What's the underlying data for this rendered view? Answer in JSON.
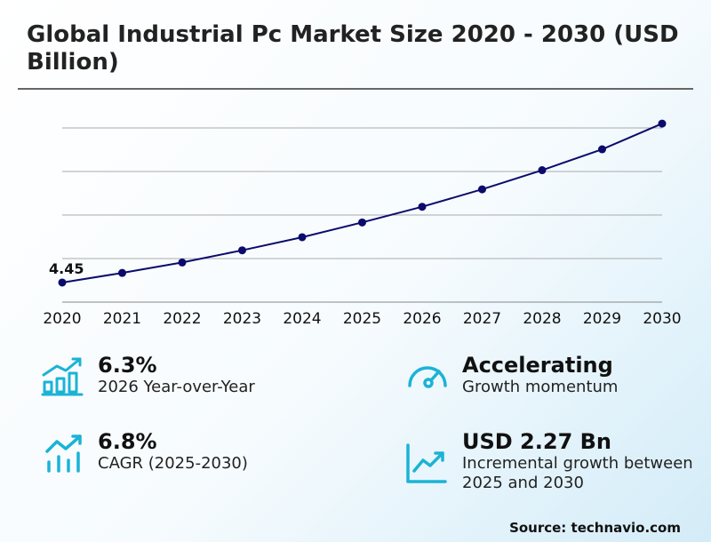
{
  "title": "Global Industrial Pc Market Size 2020 - 2030 (USD Billion)",
  "chart_data": {
    "type": "line",
    "title": "Global Industrial Pc Market Size 2020 - 2030 (USD Billion)",
    "x": [
      "2020",
      "2021",
      "2022",
      "2023",
      "2024",
      "2025",
      "2026",
      "2027",
      "2028",
      "2029",
      "2030"
    ],
    "series": [
      {
        "values": [
          4.45,
          4.67,
          4.91,
          5.19,
          5.49,
          5.83,
          6.19,
          6.59,
          7.03,
          7.51,
          8.1
        ]
      }
    ],
    "data_labels": [
      {
        "index": 0,
        "text": "4.45"
      }
    ],
    "ylim": [
      4,
      8.2
    ],
    "gridlines": [
      4,
      5,
      6,
      7,
      8
    ],
    "grid": true,
    "line_color": "#0b0b6b"
  },
  "stats": [
    {
      "icon": "bar-chart-growth-icon",
      "value": "6.3%",
      "label": "2026 Year-over-Year"
    },
    {
      "icon": "speedometer-icon",
      "value": "Accelerating",
      "label": "Growth momentum"
    },
    {
      "icon": "trend-up-bars-icon",
      "value": "6.8%",
      "label": "CAGR (2025-2030)"
    },
    {
      "icon": "line-chart-up-icon",
      "value": "USD 2.27 Bn",
      "label": "Incremental growth between 2025 and 2030"
    }
  ],
  "accent_color": "#1ab3d6",
  "source": "Source: technavio.com"
}
